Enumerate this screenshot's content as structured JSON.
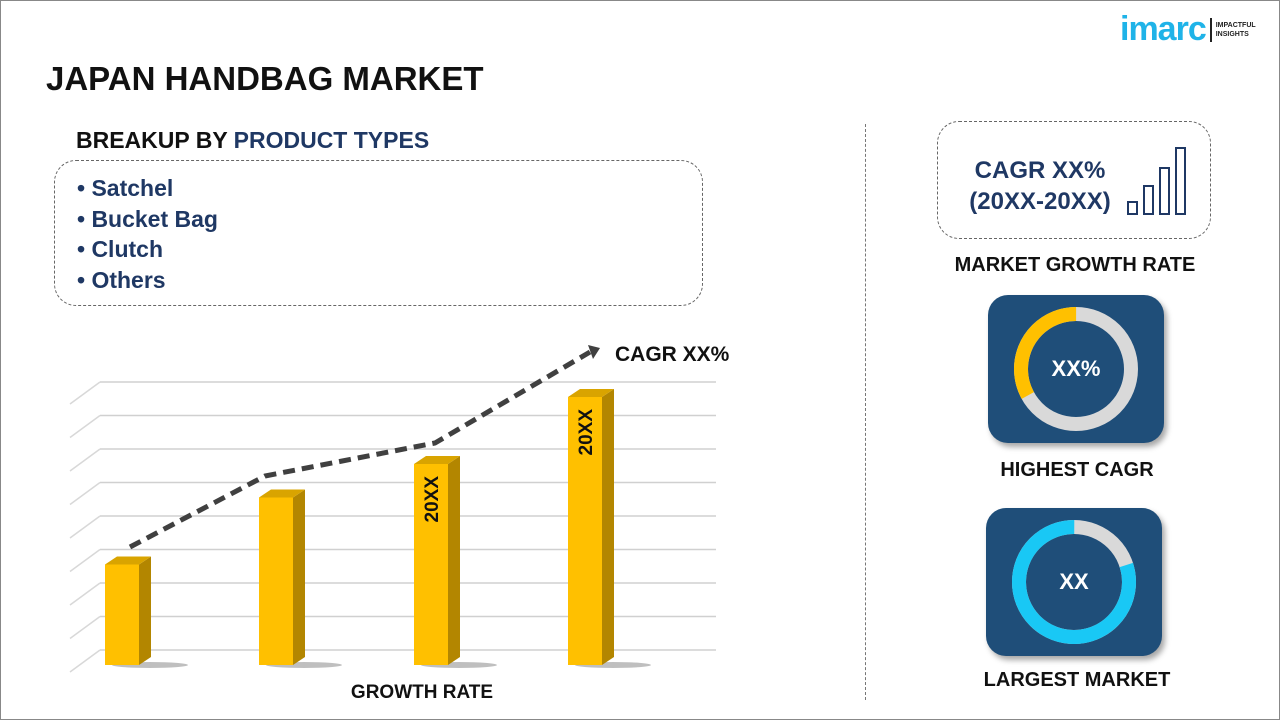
{
  "header": {
    "title": "JAPAN HANDBAG MARKET",
    "logo_text": "imarc",
    "logo_tagline": [
      "IMPACTFUL",
      "INSIGHTS"
    ]
  },
  "breakup": {
    "prefix": "BREAKUP BY ",
    "highlight": "PRODUCT TYPES",
    "items": [
      "• Satchel",
      "• Bucket Bag",
      "• Clutch",
      "• Others"
    ]
  },
  "growth": {
    "line1": "CAGR XX%",
    "line2": "(20XX-20XX)",
    "label": "MARKET GROWTH RATE",
    "icon": "bar-growth-icon"
  },
  "highest": {
    "value": "XX%",
    "label": "HIGHEST CAGR",
    "fraction": 0.33,
    "color": "#ffc000"
  },
  "largest": {
    "value": "XX",
    "label": "LARGEST MARKET",
    "fraction": 0.8,
    "color": "#19c8f5"
  },
  "colors": {
    "bar": "#ffc000",
    "bar_side": "#b38600",
    "navy": "#1f3864",
    "card": "#1f4e79"
  },
  "chart_data": {
    "type": "bar",
    "categories": [
      "",
      "",
      "",
      ""
    ],
    "values": [
      3,
      5,
      6,
      8
    ],
    "bar_labels": [
      "",
      "",
      "20XX",
      "20XX"
    ],
    "trend_annotation": "CAGR XX%",
    "xlabel": "GROWTH RATE",
    "ylabel": "",
    "ylim": [
      0,
      8.5
    ],
    "grid": true
  }
}
